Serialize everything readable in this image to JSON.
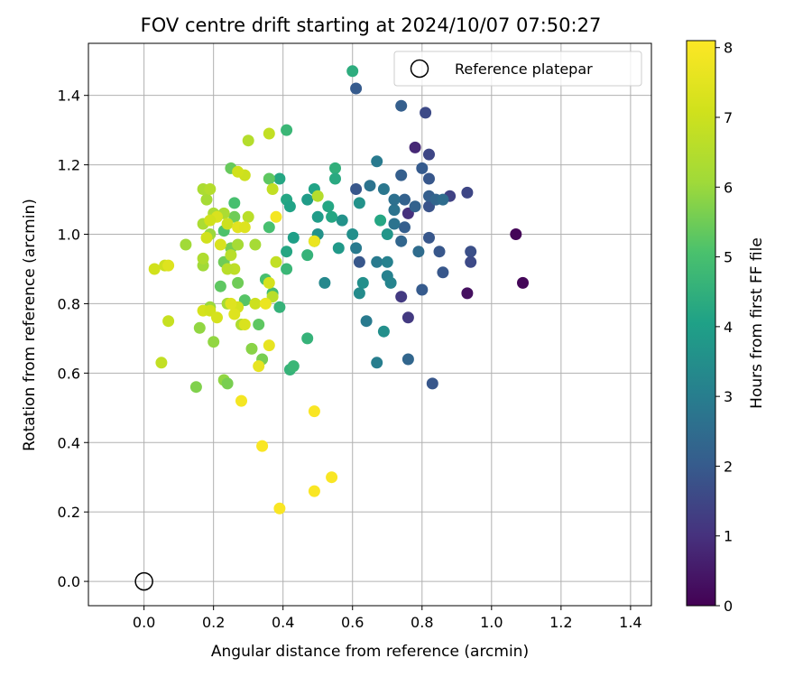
{
  "chart_data": {
    "type": "scatter",
    "title": "FOV centre drift starting at 2024/10/07 07:50:27",
    "xlabel": "Angular distance from reference (arcmin)",
    "ylabel": "Rotation from reference (arcmin)",
    "xlim": [
      -0.16,
      1.46
    ],
    "ylim": [
      -0.07,
      1.55
    ],
    "xticks": [
      "0.0",
      "0.2",
      "0.4",
      "0.6",
      "0.8",
      "1.0",
      "1.2",
      "1.4"
    ],
    "yticks": [
      "0.0",
      "0.2",
      "0.4",
      "0.6",
      "0.8",
      "1.0",
      "1.2",
      "1.4"
    ],
    "grid": true,
    "legend": {
      "position": "top-right",
      "entries": [
        "Reference platepar"
      ]
    },
    "reference_point": {
      "x": 0.0,
      "y": 0.0
    },
    "colorbar": {
      "label": "Hours from first FF file",
      "min": 0,
      "max": 8.1,
      "ticks": [
        "0",
        "1",
        "2",
        "3",
        "4",
        "5",
        "6",
        "7",
        "8"
      ],
      "colormap": "viridis"
    },
    "points": [
      [
        1.07,
        1.0,
        0.1
      ],
      [
        1.09,
        0.86,
        0.1
      ],
      [
        0.93,
        0.83,
        0.3
      ],
      [
        0.78,
        1.25,
        0.8
      ],
      [
        0.76,
        0.76,
        1.2
      ],
      [
        0.74,
        0.82,
        1.2
      ],
      [
        0.76,
        1.06,
        1.0
      ],
      [
        0.81,
        1.35,
        1.6
      ],
      [
        0.82,
        1.23,
        1.5
      ],
      [
        0.88,
        1.11,
        1.4
      ],
      [
        0.93,
        1.12,
        1.5
      ],
      [
        0.94,
        0.95,
        1.7
      ],
      [
        0.94,
        0.92,
        1.6
      ],
      [
        0.86,
        0.89,
        1.9
      ],
      [
        0.85,
        0.95,
        1.9
      ],
      [
        0.83,
        0.57,
        1.9
      ],
      [
        0.76,
        0.64,
        2.3
      ],
      [
        0.8,
        0.84,
        2.0
      ],
      [
        0.82,
        0.99,
        1.9
      ],
      [
        0.82,
        1.08,
        1.8
      ],
      [
        0.82,
        1.16,
        1.9
      ],
      [
        0.8,
        1.19,
        2.0
      ],
      [
        0.82,
        1.11,
        2.1
      ],
      [
        0.84,
        1.1,
        2.3
      ],
      [
        0.86,
        1.1,
        2.5
      ],
      [
        0.78,
        1.08,
        2.2
      ],
      [
        0.75,
        1.1,
        2.2
      ],
      [
        0.74,
        1.17,
        2.1
      ],
      [
        0.74,
        1.37,
        2.1
      ],
      [
        0.61,
        1.42,
        2.0
      ],
      [
        0.62,
        0.92,
        1.9
      ],
      [
        0.61,
        1.13,
        1.9
      ],
      [
        0.74,
        0.98,
        2.3
      ],
      [
        0.75,
        1.02,
        2.1
      ],
      [
        0.79,
        0.95,
        2.5
      ],
      [
        0.72,
        1.03,
        2.7
      ],
      [
        0.72,
        1.07,
        2.7
      ],
      [
        0.72,
        1.1,
        2.6
      ],
      [
        0.69,
        1.13,
        2.8
      ],
      [
        0.67,
        1.21,
        2.9
      ],
      [
        0.65,
        1.14,
        2.7
      ],
      [
        0.67,
        0.92,
        2.9
      ],
      [
        0.7,
        0.92,
        3.1
      ],
      [
        0.7,
        0.88,
        3.1
      ],
      [
        0.71,
        0.86,
        3.2
      ],
      [
        0.67,
        0.63,
        3.0
      ],
      [
        0.69,
        0.72,
        3.5
      ],
      [
        0.64,
        0.75,
        2.9
      ],
      [
        0.61,
        0.96,
        2.9
      ],
      [
        0.6,
        1.0,
        3.5
      ],
      [
        0.62,
        1.09,
        3.6
      ],
      [
        0.63,
        0.86,
        3.5
      ],
      [
        0.62,
        0.83,
        3.4
      ],
      [
        0.7,
        1.0,
        3.7
      ],
      [
        0.68,
        1.04,
        4.2
      ],
      [
        0.52,
        0.86,
        3.3
      ],
      [
        0.57,
        1.04,
        3.6
      ],
      [
        0.56,
        0.96,
        3.8
      ],
      [
        0.5,
        1.05,
        3.9
      ],
      [
        0.5,
        1.0,
        3.6
      ],
      [
        0.47,
        1.1,
        3.9
      ],
      [
        0.49,
        1.13,
        4.1
      ],
      [
        0.53,
        1.08,
        4.2
      ],
      [
        0.54,
        1.05,
        4.2
      ],
      [
        0.55,
        1.19,
        4.5
      ],
      [
        0.55,
        1.16,
        4.3
      ],
      [
        0.6,
        1.47,
        4.4
      ],
      [
        0.41,
        1.3,
        4.7
      ],
      [
        0.39,
        1.16,
        4.2
      ],
      [
        0.41,
        1.1,
        4.2
      ],
      [
        0.42,
        1.08,
        4.1
      ],
      [
        0.43,
        0.99,
        4.0
      ],
      [
        0.41,
        0.95,
        4.2
      ],
      [
        0.41,
        0.9,
        4.7
      ],
      [
        0.47,
        0.94,
        4.6
      ],
      [
        0.49,
        0.98,
        5.1
      ],
      [
        0.42,
        0.61,
        4.6
      ],
      [
        0.43,
        0.62,
        4.7
      ],
      [
        0.47,
        0.7,
        4.6
      ],
      [
        0.39,
        0.79,
        4.6
      ],
      [
        0.37,
        0.83,
        4.9
      ],
      [
        0.35,
        0.87,
        5.0
      ],
      [
        0.36,
        1.02,
        5.0
      ],
      [
        0.36,
        1.16,
        5.3
      ],
      [
        0.25,
        1.19,
        5.4
      ],
      [
        0.26,
        1.09,
        5.0
      ],
      [
        0.26,
        1.05,
        5.5
      ],
      [
        0.23,
        1.01,
        5.1
      ],
      [
        0.25,
        0.96,
        5.6
      ],
      [
        0.23,
        0.92,
        5.5
      ],
      [
        0.27,
        0.86,
        5.5
      ],
      [
        0.22,
        0.85,
        5.3
      ],
      [
        0.29,
        0.81,
        5.2
      ],
      [
        0.33,
        0.74,
        5.3
      ],
      [
        0.34,
        0.64,
        5.6
      ],
      [
        0.31,
        0.67,
        5.8
      ],
      [
        0.23,
        0.58,
        5.9
      ],
      [
        0.24,
        0.57,
        5.6
      ],
      [
        0.15,
        0.56,
        5.7
      ],
      [
        0.2,
        0.69,
        5.9
      ],
      [
        0.16,
        0.73,
        5.9
      ],
      [
        0.19,
        0.79,
        6.0
      ],
      [
        0.24,
        0.8,
        6.2
      ],
      [
        0.17,
        0.91,
        6.1
      ],
      [
        0.17,
        0.93,
        6.4
      ],
      [
        0.12,
        0.97,
        6.1
      ],
      [
        0.19,
        1.0,
        6.0
      ],
      [
        0.17,
        1.03,
        6.3
      ],
      [
        0.2,
        1.06,
        6.3
      ],
      [
        0.23,
        1.06,
        6.3
      ],
      [
        0.18,
        1.1,
        6.2
      ],
      [
        0.17,
        1.13,
        6.3
      ],
      [
        0.19,
        1.13,
        6.5
      ],
      [
        0.3,
        1.27,
        6.5
      ],
      [
        0.32,
        0.97,
        6.2
      ],
      [
        0.27,
        0.97,
        6.2
      ],
      [
        0.25,
        0.94,
        6.6
      ],
      [
        0.26,
        0.9,
        6.7
      ],
      [
        0.24,
        0.9,
        6.6
      ],
      [
        0.28,
        0.74,
        6.4
      ],
      [
        0.3,
        1.05,
        6.6
      ],
      [
        0.36,
        1.29,
        6.8
      ],
      [
        0.37,
        1.13,
        6.8
      ],
      [
        0.38,
        0.92,
        6.8
      ],
      [
        0.5,
        1.11,
        6.5
      ],
      [
        0.32,
        0.8,
        7.0
      ],
      [
        0.36,
        0.86,
        7.2
      ],
      [
        0.37,
        0.82,
        6.6
      ],
      [
        0.29,
        1.17,
        7.0
      ],
      [
        0.27,
        1.18,
        7.1
      ],
      [
        0.24,
        1.03,
        7.0
      ],
      [
        0.22,
        0.97,
        7.3
      ],
      [
        0.21,
        1.05,
        7.3
      ],
      [
        0.19,
        1.04,
        7.1
      ],
      [
        0.18,
        0.99,
        7.1
      ],
      [
        0.17,
        0.78,
        7.2
      ],
      [
        0.19,
        0.78,
        7.1
      ],
      [
        0.21,
        0.76,
        7.2
      ],
      [
        0.27,
        0.79,
        7.2
      ],
      [
        0.26,
        0.77,
        7.4
      ],
      [
        0.29,
        0.74,
        7.3
      ],
      [
        0.25,
        0.8,
        7.4
      ],
      [
        0.27,
        1.02,
        7.5
      ],
      [
        0.29,
        1.02,
        7.4
      ],
      [
        0.05,
        0.63,
        6.8
      ],
      [
        0.07,
        0.75,
        6.9
      ],
      [
        0.06,
        0.91,
        7.0
      ],
      [
        0.03,
        0.9,
        7.1
      ],
      [
        0.07,
        0.91,
        7.4
      ],
      [
        0.33,
        0.62,
        7.6
      ],
      [
        0.36,
        0.68,
        7.6
      ],
      [
        0.35,
        0.8,
        7.7
      ],
      [
        0.38,
        1.05,
        7.9
      ],
      [
        0.49,
        0.98,
        7.7
      ],
      [
        0.28,
        0.52,
        7.9
      ],
      [
        0.34,
        0.39,
        8.0
      ],
      [
        0.49,
        0.49,
        8.0
      ],
      [
        0.49,
        0.26,
        8.0
      ],
      [
        0.54,
        0.3,
        8.0
      ],
      [
        0.39,
        0.21,
        8.0
      ]
    ]
  }
}
